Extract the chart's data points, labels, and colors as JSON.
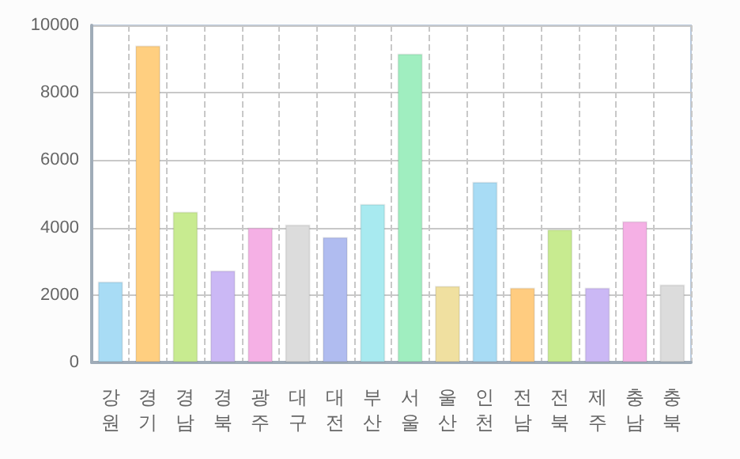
{
  "chart_data": {
    "type": "bar",
    "categories": [
      "강원",
      "경기",
      "경남",
      "경북",
      "광주",
      "대구",
      "대전",
      "부산",
      "서울",
      "울산",
      "인천",
      "전남",
      "전북",
      "제주",
      "충남",
      "충북"
    ],
    "values": [
      2400,
      9400,
      4470,
      2730,
      4000,
      4090,
      3720,
      4700,
      9160,
      2270,
      5360,
      2220,
      3950,
      2220,
      4190,
      2310
    ],
    "colors": [
      "#a8dcf5",
      "#ffcf80",
      "#c8eb90",
      "#cbb8f5",
      "#f5b0e5",
      "#dcdcdc",
      "#b0bcf0",
      "#a8eaf0",
      "#a0eec0",
      "#f0e0a0",
      "#a8dcf5",
      "#ffcc80",
      "#c8eb90",
      "#cbb8f5",
      "#f5b0e5",
      "#dcdcdc"
    ],
    "ylim": [
      0,
      10000
    ],
    "yticks": [
      0,
      2000,
      4000,
      6000,
      8000,
      10000
    ],
    "grid": true
  }
}
